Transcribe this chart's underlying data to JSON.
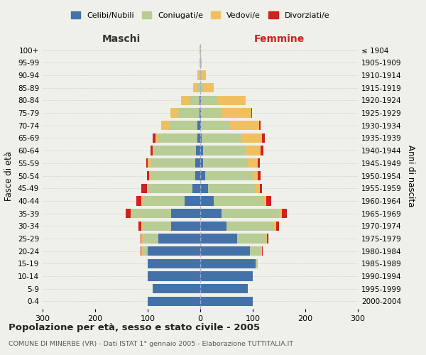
{
  "age_groups": [
    "0-4",
    "5-9",
    "10-14",
    "15-19",
    "20-24",
    "25-29",
    "30-34",
    "35-39",
    "40-44",
    "45-49",
    "50-54",
    "55-59",
    "60-64",
    "65-69",
    "70-74",
    "75-79",
    "80-84",
    "85-89",
    "90-94",
    "95-99",
    "100+"
  ],
  "birth_years": [
    "2000-2004",
    "1995-1999",
    "1990-1994",
    "1985-1989",
    "1980-1984",
    "1975-1979",
    "1970-1974",
    "1965-1969",
    "1960-1964",
    "1955-1959",
    "1950-1954",
    "1945-1949",
    "1940-1944",
    "1935-1939",
    "1930-1934",
    "1925-1929",
    "1920-1924",
    "1915-1919",
    "1910-1914",
    "1905-1909",
    "≤ 1904"
  ],
  "male": {
    "celibi": [
      100,
      90,
      100,
      100,
      100,
      80,
      55,
      55,
      30,
      15,
      10,
      10,
      8,
      5,
      5,
      2,
      2,
      0,
      0,
      0,
      0
    ],
    "coniugati": [
      0,
      0,
      0,
      0,
      10,
      30,
      55,
      75,
      80,
      85,
      85,
      85,
      80,
      75,
      55,
      40,
      20,
      5,
      2,
      1,
      1
    ],
    "vedovi": [
      0,
      0,
      0,
      0,
      2,
      2,
      2,
      2,
      2,
      2,
      2,
      5,
      3,
      5,
      15,
      15,
      15,
      8,
      3,
      0,
      0
    ],
    "divorziati": [
      0,
      0,
      0,
      0,
      2,
      2,
      5,
      10,
      10,
      10,
      5,
      3,
      3,
      5,
      0,
      0,
      0,
      0,
      0,
      0,
      0
    ]
  },
  "female": {
    "nubili": [
      100,
      90,
      100,
      105,
      95,
      70,
      50,
      40,
      25,
      15,
      10,
      5,
      5,
      3,
      2,
      2,
      2,
      0,
      0,
      0,
      0
    ],
    "coniugate": [
      0,
      0,
      0,
      5,
      20,
      55,
      90,
      110,
      95,
      90,
      90,
      85,
      80,
      75,
      55,
      40,
      30,
      5,
      3,
      1,
      1
    ],
    "vedove": [
      0,
      0,
      0,
      0,
      2,
      2,
      5,
      5,
      5,
      8,
      10,
      20,
      30,
      40,
      55,
      55,
      55,
      20,
      8,
      2,
      0
    ],
    "divorziate": [
      0,
      0,
      0,
      0,
      2,
      3,
      5,
      10,
      10,
      5,
      5,
      3,
      5,
      5,
      3,
      2,
      0,
      0,
      0,
      0,
      0
    ]
  },
  "colors": {
    "celibi": "#4472a8",
    "coniugati": "#b8cc96",
    "vedovi": "#f0c060",
    "divorziati": "#cc2222"
  },
  "legend_labels": [
    "Celibi/Nubili",
    "Coniugati/e",
    "Vedovi/e",
    "Divorziati/e"
  ],
  "title": "Popolazione per età, sesso e stato civile - 2005",
  "subtitle": "COMUNE DI MINERBE (VR) - Dati ISTAT 1° gennaio 2005 - Elaborazione TUTTITALIA.IT",
  "xlabel_left": "Maschi",
  "xlabel_right": "Femmine",
  "ylabel_left": "Fasce di età",
  "ylabel_right": "Anni di nascita",
  "xlim": 300,
  "bg_color": "#f0f0eb"
}
